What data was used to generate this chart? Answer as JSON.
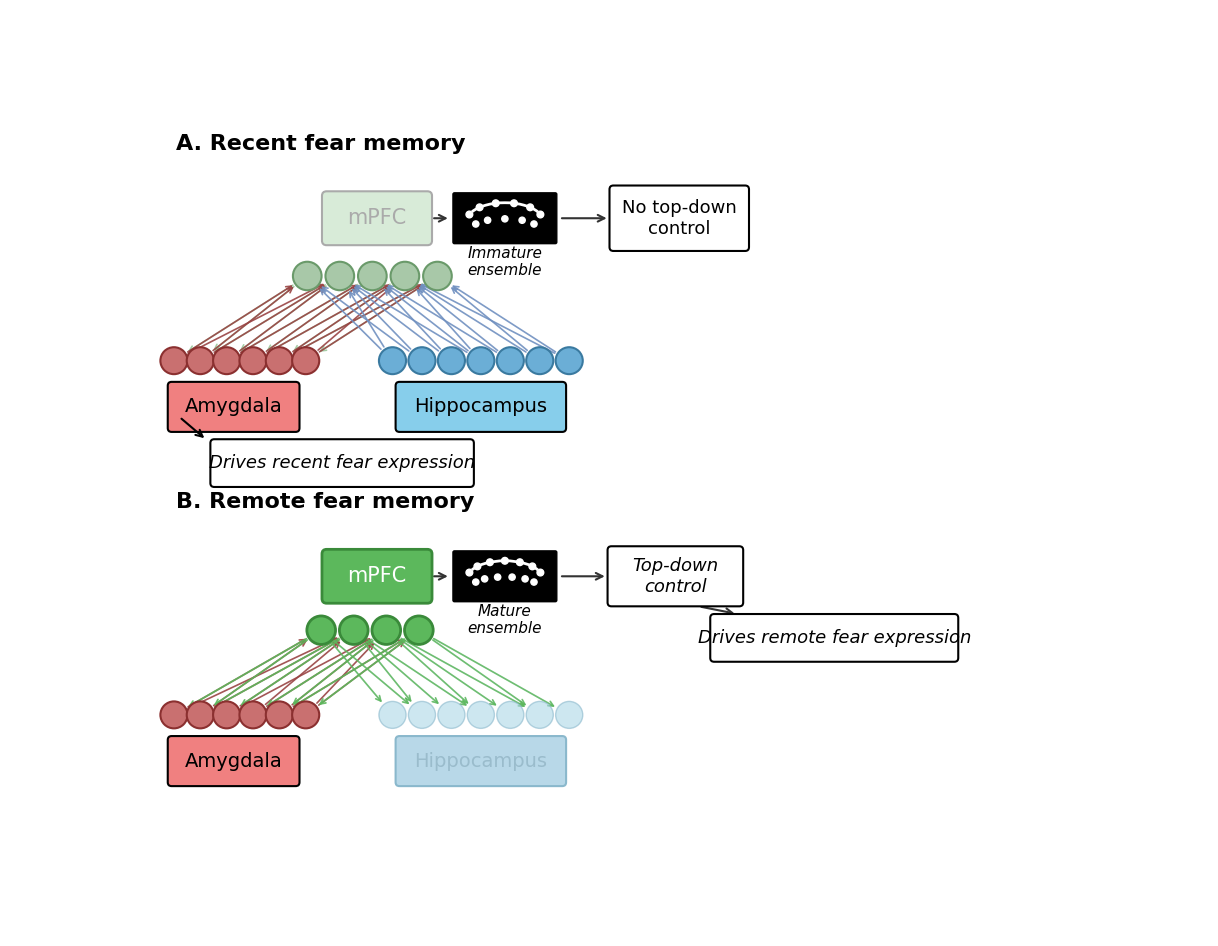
{
  "panel_A_title": "A. Recent fear memory",
  "panel_B_title": "B. Remote fear memory",
  "amygdala_label": "Amygdala",
  "hippocampus_label": "Hippocampus",
  "mpfc_label": "mPFC",
  "immature_label": "Immature\nensemble",
  "mature_label": "Mature\nensemble",
  "no_topdown_label": "No top-down\ncontrol",
  "topdown_label": "Top-down\ncontrol",
  "drives_recent_label": "Drives recent fear expression",
  "drives_remote_label": "Drives remote fear expression",
  "amygdala_box_color": "#F08080",
  "amygdala_node_color": "#C97070",
  "amygdala_node_edge": "#8B3030",
  "hippocampus_box_color_A": "#87CEEB",
  "hippocampus_node_color_A": "#6BAED6",
  "hippocampus_node_edge_A": "#3A7AA0",
  "hippocampus_box_color_B": "#B8D8E8",
  "hippocampus_node_color_B": "#ADD8E6",
  "hippocampus_node_edge_B": "#8AB8CC",
  "hippocampus_text_color_B": "#9ABCCC",
  "mpfc_color_A_bg": "#D8EBD8",
  "mpfc_color_A_edge": "#AAAAAA",
  "mpfc_color_A_text": "#AAAAAA",
  "mpfc_color_B_bg": "#5CB85C",
  "mpfc_color_B_edge": "#3A8A3A",
  "mpfc_color_B_text": "#FFFFFF",
  "engram_node_color_A": "#A8C8A8",
  "engram_node_edge_A": "#6A9A6A",
  "engram_node_color_B": "#5CB85C",
  "engram_node_edge_B": "#3A8A3A",
  "red_arrow_color": "#994444",
  "green_arrow_color_A": "#90C090",
  "green_arrow_color_B": "#5CB85C",
  "blue_arrow_color": "#7090C0",
  "light_blue_arrow_color": "#B0C8D8",
  "black_arrow_color": "#333333",
  "bg_color": "#FFFFFF"
}
